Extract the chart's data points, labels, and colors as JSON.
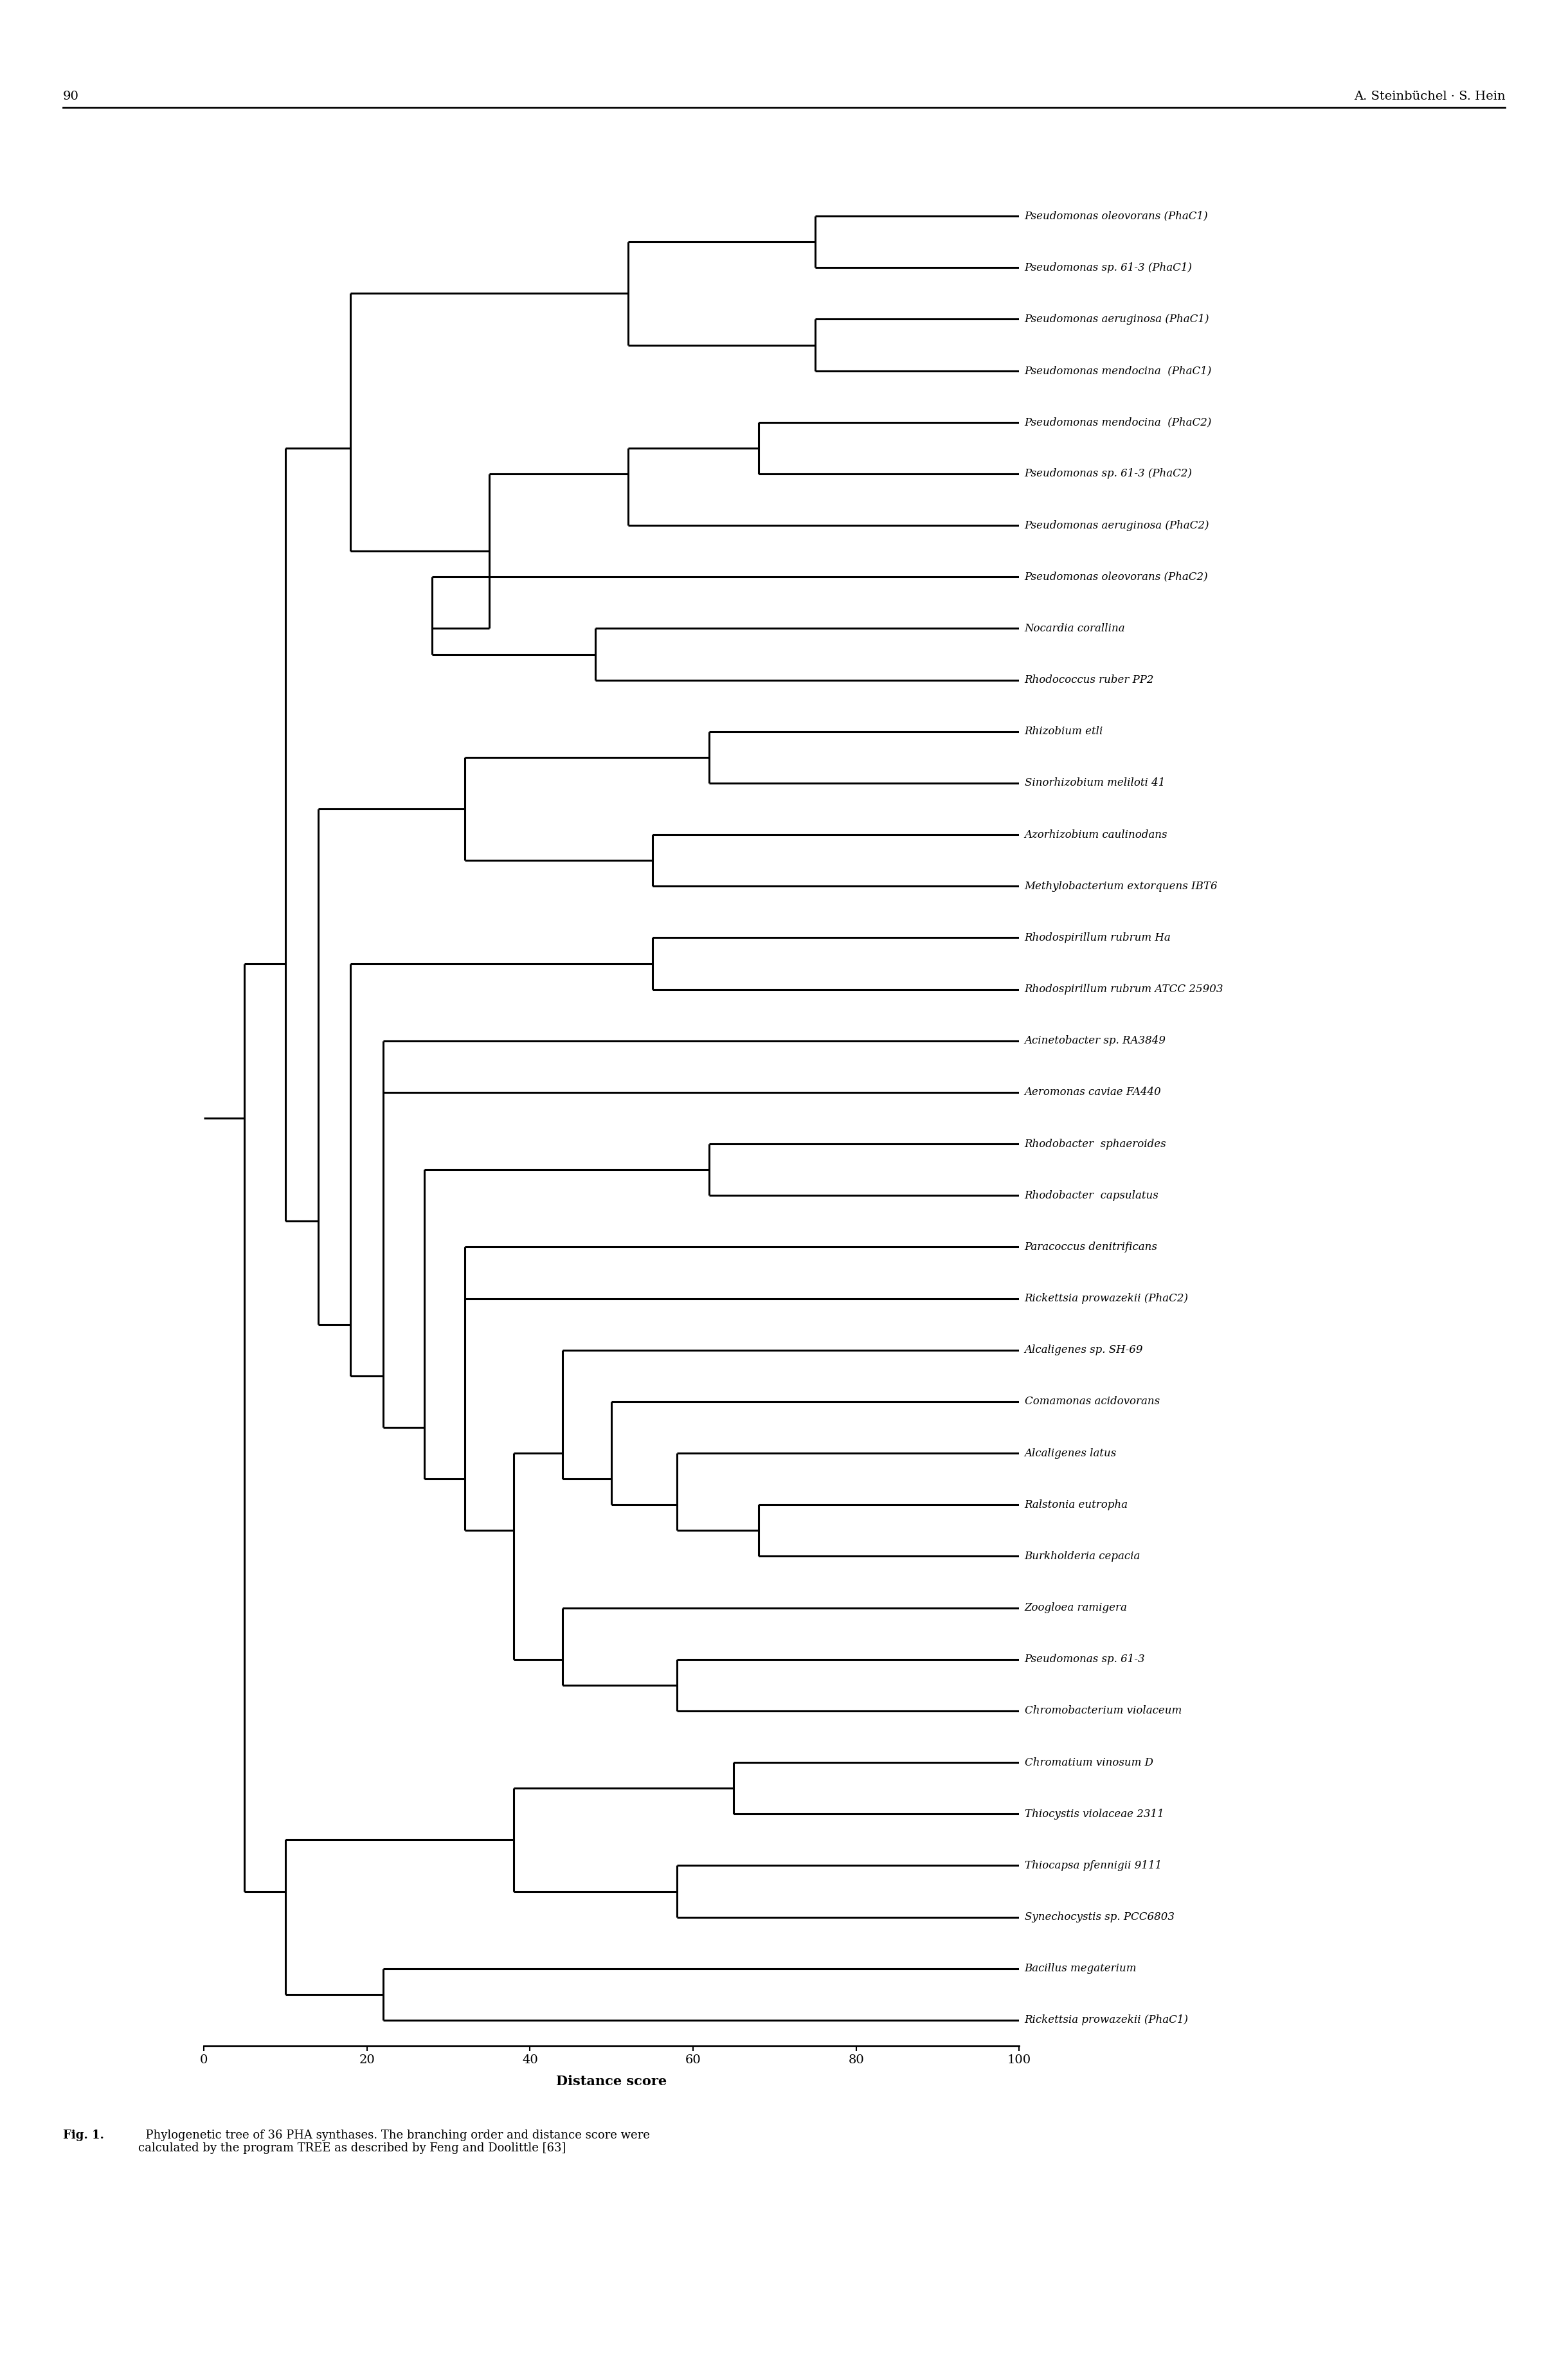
{
  "page_number": "90",
  "header_right": "A. Steinbüchel · S. Hein",
  "caption_bold": "Fig. 1.",
  "caption_normal": "  Phylogenetic tree of 36 PHA synthases. The branching order and distance score were\ncalculated by the program TREE as described by Feng and Doolittle [63]",
  "xlabel": "Distance score",
  "xticks": [
    0,
    20,
    40,
    60,
    80,
    100
  ],
  "background_color": "#ffffff",
  "line_color": "#000000",
  "lw": 2.2,
  "taxa": [
    "Pseudomonas oleovorans (PhaC1)",
    "Pseudomonas sp. 61-3 (PhaC1)",
    "Pseudomonas aeruginosa (PhaC1)",
    "Pseudomonas mendocina  (PhaC1)",
    "Pseudomonas mendocina  (PhaC2)",
    "Pseudomonas sp. 61-3 (PhaC2)",
    "Pseudomonas aeruginosa (PhaC2)",
    "Pseudomonas oleovorans (PhaC2)",
    "Nocardia corallina",
    "Rhodococcus ruber PP2",
    "Rhizobium etli",
    "Sinorhizobium meliloti 41",
    "Azorhizobium caulinodans",
    "Methylobacterium extorquens IBT6",
    "Rhodospirillum rubrum Ha",
    "Rhodospirillum rubrum ATCC 25903",
    "Acinetobacter sp. RA3849",
    "Aeromonas caviae FA440",
    "Rhodobacter  sphaeroides",
    "Rhodobacter  capsulatus",
    "Paracoccus denitrificans",
    "Rickettsia prowazekii (PhaC2)",
    "Alcaligenes sp. SH-69",
    "Comamonas acidovorans",
    "Alcaligenes latus",
    "Ralstonia eutropha",
    "Burkholderia cepacia",
    "Zoogloea ramigera",
    "Pseudomonas sp. 61-3",
    "Chromobacterium violaceum",
    "Chromatium vinosum D",
    "Thiocystis violaceae 2311",
    "Thiocapsa pfennigii 9111",
    "Synechocystis sp. PCC6803",
    "Bacillus megaterium",
    "Rickettsia prowazekii (PhaC1)"
  ]
}
